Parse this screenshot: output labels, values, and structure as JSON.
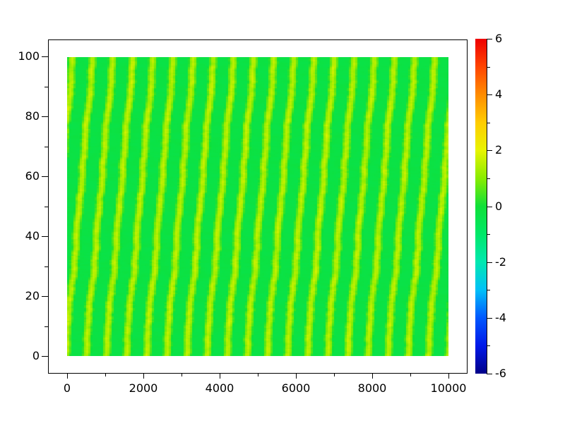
{
  "figure": {
    "background_color": "#ffffff",
    "title": ""
  },
  "chart_data": {
    "type": "heatmap",
    "title": "",
    "xlabel": "",
    "ylabel": "",
    "grid": false,
    "x_axis": {
      "data_range": [
        0,
        10000
      ],
      "axis_range_shown": [
        -500,
        10500
      ],
      "major_tick_values": [
        0,
        2000,
        4000,
        6000,
        8000,
        10000
      ],
      "major_tick_labels": [
        "0",
        "2000",
        "4000",
        "6000",
        "8000",
        "10000"
      ],
      "minor_tick_values": [
        1000,
        3000,
        5000,
        7000,
        9000
      ]
    },
    "y_axis": {
      "data_range": [
        0,
        100
      ],
      "axis_range_shown": [
        -6,
        106
      ],
      "major_tick_values": [
        0,
        20,
        40,
        60,
        80,
        100
      ],
      "major_tick_labels": [
        "0",
        "20",
        "40",
        "60",
        "80",
        "100"
      ],
      "minor_tick_values": [
        10,
        30,
        50,
        70,
        90
      ]
    },
    "colorbar": {
      "value_range": [
        -6,
        6
      ],
      "major_tick_values": [
        6,
        4,
        2,
        0,
        -2,
        -4,
        -6
      ],
      "major_tick_labels": [
        "6",
        "4",
        "2",
        "0",
        "-2",
        "-4",
        "-6"
      ],
      "minor_tick_values": [
        5,
        3,
        1,
        -1,
        -3,
        -5
      ],
      "colormap_stops": [
        {
          "value": -6,
          "color": "#000088"
        },
        {
          "value": -5,
          "color": "#0018e8"
        },
        {
          "value": -4,
          "color": "#0058ff"
        },
        {
          "value": -3,
          "color": "#00c0f8"
        },
        {
          "value": -2,
          "color": "#00e8b0"
        },
        {
          "value": -1,
          "color": "#00e868"
        },
        {
          "value": 0,
          "color": "#10e038"
        },
        {
          "value": 1,
          "color": "#88ec00"
        },
        {
          "value": 2,
          "color": "#e8f400"
        },
        {
          "value": 3,
          "color": "#ffcc00"
        },
        {
          "value": 4,
          "color": "#ff8c00"
        },
        {
          "value": 5,
          "color": "#ff4400"
        },
        {
          "value": 6,
          "color": "#ee0000"
        }
      ]
    },
    "field": {
      "pattern": "diagonal-stripes-with-noise",
      "description": "random scalar field of tilted yellow-green stripes on green background",
      "stripe_count_visible": 19,
      "stripe_period_x_units": 530,
      "stripe_slope_dx_per_dy_units": 7,
      "value_background": -0.28,
      "value_stripe_peak": 1.25,
      "noise_amplitude": 0.35,
      "displayed_value_min": -0.8,
      "displayed_value_max": 1.9
    }
  }
}
